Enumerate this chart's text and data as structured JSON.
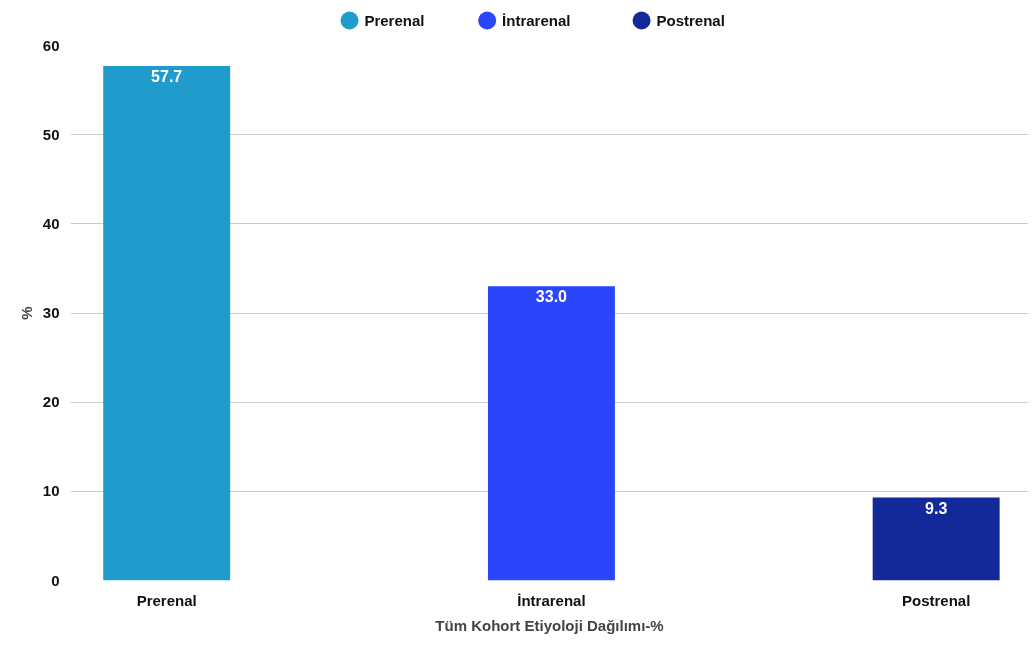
{
  "chart_data": {
    "type": "bar",
    "xlabel": "Tüm Kohort Etiyoloji Dağılımı-%",
    "ylabel": "%",
    "categories": [
      "Prerenal",
      "İntrarenal",
      "Postrenal"
    ],
    "series": [
      {
        "name": "Prerenal",
        "color": "#1f9bcc",
        "values": [
          57.7,
          null,
          null
        ]
      },
      {
        "name": "İntrarenal",
        "color": "#2b45fb",
        "values": [
          null,
          33.0,
          null
        ]
      },
      {
        "name": "Postrenal",
        "color": "#13299a",
        "values": [
          null,
          null,
          9.3
        ]
      }
    ],
    "value_labels": [
      "57.7",
      "33.0",
      "9.3"
    ],
    "ylim": [
      0,
      60
    ],
    "yticks": [
      0,
      10,
      20,
      30,
      40,
      50,
      60
    ],
    "grid": "y",
    "legend": "top"
  }
}
